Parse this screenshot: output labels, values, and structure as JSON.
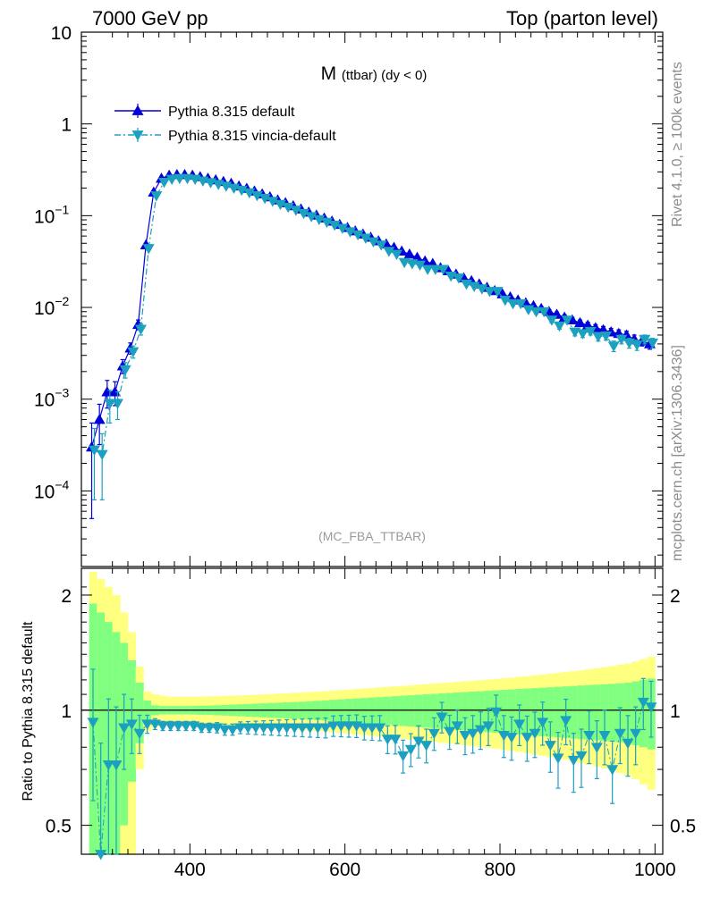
{
  "header": {
    "left": "7000 GeV pp",
    "right": "Top (parton level)"
  },
  "side_labels": {
    "rivet": "Rivet 4.1.0, ≥ 100k events",
    "mcplots": "mcplots.cern.ch [arXiv:1306.3436]"
  },
  "colors": {
    "default": "#0000d9",
    "vincia": "#1ba0bf",
    "band_outer": "#ffff80",
    "band_inner": "#80ff80",
    "watermark": "#9a9a9a"
  },
  "chart_data": [
    {
      "type": "line",
      "panel": "main",
      "title": "M",
      "title_sub": "(ttbar)",
      "title_suffix": "(dy < 0)",
      "watermark": "(MC_FBA_TTBAR)",
      "xscale": "linear",
      "yscale": "log",
      "xlim": [
        260,
        1010
      ],
      "ylim": [
        1.5e-05,
        10
      ],
      "xticks": [
        400,
        600,
        800,
        1000
      ],
      "yticks": [
        {
          "value": 10,
          "label": "10"
        },
        {
          "value": 1,
          "label": "1"
        },
        {
          "value": 0.1,
          "label": "10",
          "exp": "−1"
        },
        {
          "value": 0.01,
          "label": "10",
          "exp": "−2"
        },
        {
          "value": 0.001,
          "label": "10",
          "exp": "−3"
        },
        {
          "value": 0.0001,
          "label": "10",
          "exp": "−4"
        }
      ],
      "legend": [
        "Pythia 8.315 default",
        "Pythia 8.315 vincia-default"
      ],
      "legend_position": "top-left",
      "bin_width": 10,
      "x": [
        275,
        285,
        295,
        305,
        315,
        325,
        335,
        345,
        355,
        365,
        375,
        385,
        395,
        405,
        415,
        425,
        435,
        445,
        455,
        465,
        475,
        485,
        495,
        505,
        515,
        525,
        535,
        545,
        555,
        565,
        575,
        585,
        595,
        605,
        615,
        625,
        635,
        645,
        655,
        665,
        675,
        685,
        695,
        705,
        715,
        725,
        735,
        745,
        755,
        765,
        775,
        785,
        795,
        805,
        815,
        825,
        835,
        845,
        855,
        865,
        875,
        885,
        895,
        905,
        915,
        925,
        935,
        945,
        955,
        965,
        975,
        985,
        995
      ],
      "series": [
        {
          "name": "Pythia 8.315 default",
          "style": "solid",
          "marker": "triangle-up",
          "values": [
            0.0003,
            0.0006,
            0.0012,
            0.0012,
            0.0023,
            0.0036,
            0.0065,
            0.048,
            0.18,
            0.255,
            0.275,
            0.28,
            0.28,
            0.275,
            0.265,
            0.255,
            0.245,
            0.235,
            0.225,
            0.21,
            0.198,
            0.185,
            0.172,
            0.16,
            0.148,
            0.138,
            0.128,
            0.118,
            0.109,
            0.101,
            0.094,
            0.087,
            0.08,
            0.074,
            0.068,
            0.063,
            0.058,
            0.053,
            0.049,
            0.045,
            0.041,
            0.038,
            0.035,
            0.032,
            0.03,
            0.027,
            0.025,
            0.023,
            0.021,
            0.0195,
            0.018,
            0.0165,
            0.0152,
            0.014,
            0.013,
            0.012,
            0.0112,
            0.0104,
            0.0097,
            0.009,
            0.0084,
            0.0078,
            0.0073,
            0.0068,
            0.0064,
            0.006,
            0.0057,
            0.0054,
            0.0052,
            0.005,
            0.0045,
            0.0043,
            0.004
          ],
          "errors": [
            0.00025,
            0.00028,
            0.0004,
            0.00035,
            0.0004,
            0.0005,
            0.0008,
            0.002,
            0.004,
            0.005,
            0.005,
            0.005,
            0.005,
            0.005,
            0.005,
            0.004,
            0.004,
            0.004,
            0.004,
            0.004,
            0.003,
            0.003,
            0.003,
            0.003,
            0.003,
            0.003,
            0.002,
            0.002,
            0.002,
            0.002,
            0.002,
            0.002,
            0.0015,
            0.0015,
            0.0015,
            0.0013,
            0.0013,
            0.0012,
            0.0011,
            0.001,
            0.001,
            0.0009,
            0.0009,
            0.0008,
            0.0008,
            0.0007,
            0.0007,
            0.0007,
            0.0006,
            0.0006,
            0.0006,
            0.0006,
            0.0005,
            0.0005,
            0.0005,
            0.0005,
            0.0005,
            0.0005,
            0.0005,
            0.0005,
            0.0005,
            0.0005,
            0.0005,
            0.0005,
            0.0005,
            0.0005,
            0.0005,
            0.0005,
            0.0005,
            0.0005,
            0.0005,
            0.0005,
            0.0005
          ]
        },
        {
          "name": "Pythia 8.315 vincia-default",
          "style": "dash-dot",
          "marker": "triangle-down",
          "values": [
            0.00028,
            0.00025,
            0.0009,
            0.0009,
            0.0021,
            0.0033,
            0.0058,
            0.044,
            0.165,
            0.232,
            0.25,
            0.255,
            0.255,
            0.25,
            0.24,
            0.23,
            0.22,
            0.21,
            0.2,
            0.19,
            0.178,
            0.166,
            0.155,
            0.144,
            0.133,
            0.124,
            0.115,
            0.106,
            0.098,
            0.091,
            0.085,
            0.079,
            0.073,
            0.067,
            0.062,
            0.057,
            0.052,
            0.048,
            0.041,
            0.038,
            0.031,
            0.03,
            0.029,
            0.026,
            0.026,
            0.026,
            0.022,
            0.021,
            0.018,
            0.017,
            0.016,
            0.015,
            0.015,
            0.012,
            0.011,
            0.011,
            0.0095,
            0.009,
            0.009,
            0.0073,
            0.0063,
            0.0073,
            0.0054,
            0.0052,
            0.0055,
            0.0048,
            0.0049,
            0.0038,
            0.0045,
            0.0041,
            0.0039,
            0.0045,
            0.0041
          ],
          "errors": [
            0.0002,
            0.00017,
            0.00035,
            0.0003,
            0.0004,
            0.0005,
            0.0008,
            0.002,
            0.004,
            0.005,
            0.005,
            0.005,
            0.005,
            0.005,
            0.005,
            0.004,
            0.004,
            0.004,
            0.004,
            0.004,
            0.003,
            0.003,
            0.003,
            0.003,
            0.003,
            0.003,
            0.002,
            0.002,
            0.002,
            0.002,
            0.002,
            0.002,
            0.0015,
            0.0015,
            0.0015,
            0.0013,
            0.0013,
            0.0012,
            0.0011,
            0.001,
            0.001,
            0.0009,
            0.0009,
            0.0008,
            0.0008,
            0.0007,
            0.0007,
            0.0007,
            0.0006,
            0.0006,
            0.0006,
            0.0006,
            0.0005,
            0.0005,
            0.0005,
            0.0005,
            0.0005,
            0.0005,
            0.0005,
            0.0005,
            0.0005,
            0.0005,
            0.0005,
            0.0005,
            0.0005,
            0.0005,
            0.0005,
            0.0005,
            0.0005,
            0.0005,
            0.0005,
            0.0005,
            0.0005
          ]
        }
      ]
    },
    {
      "type": "line",
      "panel": "ratio",
      "ylabel": "Ratio to Pythia 8.315 default",
      "xscale": "linear",
      "yscale": "log",
      "xlim": [
        260,
        1010
      ],
      "ylim": [
        0.42,
        2.35
      ],
      "xticks": [
        400,
        600,
        800,
        1000
      ],
      "yticks": [
        {
          "value": 0.5,
          "label": "0.5"
        },
        {
          "value": 1,
          "label": "1"
        },
        {
          "value": 2,
          "label": "2"
        }
      ],
      "reference_line": 1,
      "bands": {
        "x": [
          275,
          285,
          295,
          305,
          315,
          325,
          335,
          345,
          355,
          365,
          375,
          385,
          395,
          405,
          415,
          425,
          435,
          445,
          455,
          465,
          475,
          485,
          495,
          505,
          515,
          525,
          535,
          545,
          555,
          565,
          575,
          585,
          595,
          605,
          615,
          625,
          635,
          645,
          655,
          665,
          675,
          685,
          695,
          705,
          715,
          725,
          735,
          745,
          755,
          765,
          775,
          785,
          795,
          805,
          815,
          825,
          835,
          845,
          855,
          865,
          875,
          885,
          895,
          905,
          915,
          925,
          935,
          945,
          955,
          965,
          975,
          985,
          995
        ],
        "outer_half_width": [
          1.3,
          1.2,
          1.1,
          1.0,
          0.8,
          0.6,
          0.3,
          0.12,
          0.1,
          0.09,
          0.085,
          0.085,
          0.085,
          0.085,
          0.086,
          0.087,
          0.088,
          0.09,
          0.091,
          0.093,
          0.095,
          0.097,
          0.1,
          0.102,
          0.105,
          0.107,
          0.11,
          0.113,
          0.116,
          0.119,
          0.122,
          0.125,
          0.129,
          0.132,
          0.136,
          0.14,
          0.143,
          0.147,
          0.15,
          0.154,
          0.158,
          0.162,
          0.166,
          0.17,
          0.174,
          0.178,
          0.182,
          0.186,
          0.19,
          0.194,
          0.198,
          0.202,
          0.207,
          0.212,
          0.217,
          0.222,
          0.228,
          0.234,
          0.24,
          0.246,
          0.252,
          0.258,
          0.265,
          0.272,
          0.28,
          0.288,
          0.296,
          0.305,
          0.315,
          0.325,
          0.34,
          0.36,
          0.38
        ],
        "inner_half_width": [
          0.9,
          0.8,
          0.7,
          0.6,
          0.5,
          0.35,
          0.18,
          0.06,
          0.03,
          0.025,
          0.025,
          0.025,
          0.025,
          0.026,
          0.027,
          0.028,
          0.03,
          0.032,
          0.034,
          0.036,
          0.038,
          0.04,
          0.042,
          0.044,
          0.046,
          0.048,
          0.05,
          0.052,
          0.055,
          0.058,
          0.061,
          0.064,
          0.067,
          0.07,
          0.073,
          0.076,
          0.079,
          0.082,
          0.085,
          0.088,
          0.091,
          0.094,
          0.097,
          0.1,
          0.103,
          0.106,
          0.109,
          0.112,
          0.115,
          0.118,
          0.121,
          0.124,
          0.127,
          0.13,
          0.133,
          0.136,
          0.139,
          0.142,
          0.145,
          0.148,
          0.151,
          0.154,
          0.157,
          0.16,
          0.163,
          0.166,
          0.169,
          0.172,
          0.175,
          0.18,
          0.19,
          0.2,
          0.21
        ]
      },
      "series": [
        {
          "name": "Pythia 8.315 vincia-default",
          "marker": "triangle-down",
          "values": [
            0.93,
            0.42,
            0.72,
            0.72,
            0.9,
            0.92,
            0.87,
            0.92,
            0.92,
            0.91,
            0.91,
            0.91,
            0.91,
            0.91,
            0.9,
            0.9,
            0.9,
            0.89,
            0.89,
            0.9,
            0.9,
            0.9,
            0.9,
            0.9,
            0.9,
            0.9,
            0.9,
            0.9,
            0.9,
            0.9,
            0.9,
            0.91,
            0.91,
            0.91,
            0.91,
            0.9,
            0.9,
            0.9,
            0.84,
            0.84,
            0.76,
            0.79,
            0.83,
            0.81,
            0.87,
            0.96,
            0.88,
            0.91,
            0.86,
            0.87,
            0.89,
            0.91,
            0.99,
            0.86,
            0.85,
            0.92,
            0.85,
            0.87,
            0.93,
            0.81,
            0.75,
            0.94,
            0.74,
            0.76,
            0.86,
            0.8,
            0.86,
            0.7,
            0.87,
            0.82,
            0.87,
            1.05,
            1.02
          ],
          "errors": [
            0.35,
            0.4,
            0.35,
            0.3,
            0.2,
            0.15,
            0.1,
            0.05,
            0.03,
            0.025,
            0.025,
            0.025,
            0.025,
            0.025,
            0.025,
            0.025,
            0.028,
            0.03,
            0.03,
            0.032,
            0.034,
            0.036,
            0.038,
            0.04,
            0.042,
            0.044,
            0.046,
            0.048,
            0.05,
            0.052,
            0.054,
            0.056,
            0.058,
            0.06,
            0.062,
            0.064,
            0.066,
            0.068,
            0.07,
            0.072,
            0.075,
            0.078,
            0.08,
            0.082,
            0.085,
            0.088,
            0.09,
            0.092,
            0.095,
            0.098,
            0.1,
            0.102,
            0.105,
            0.108,
            0.11,
            0.112,
            0.115,
            0.118,
            0.12,
            0.122,
            0.125,
            0.128,
            0.13,
            0.132,
            0.135,
            0.138,
            0.14,
            0.13,
            0.145,
            0.148,
            0.15,
            0.16,
            0.17
          ]
        }
      ]
    }
  ]
}
